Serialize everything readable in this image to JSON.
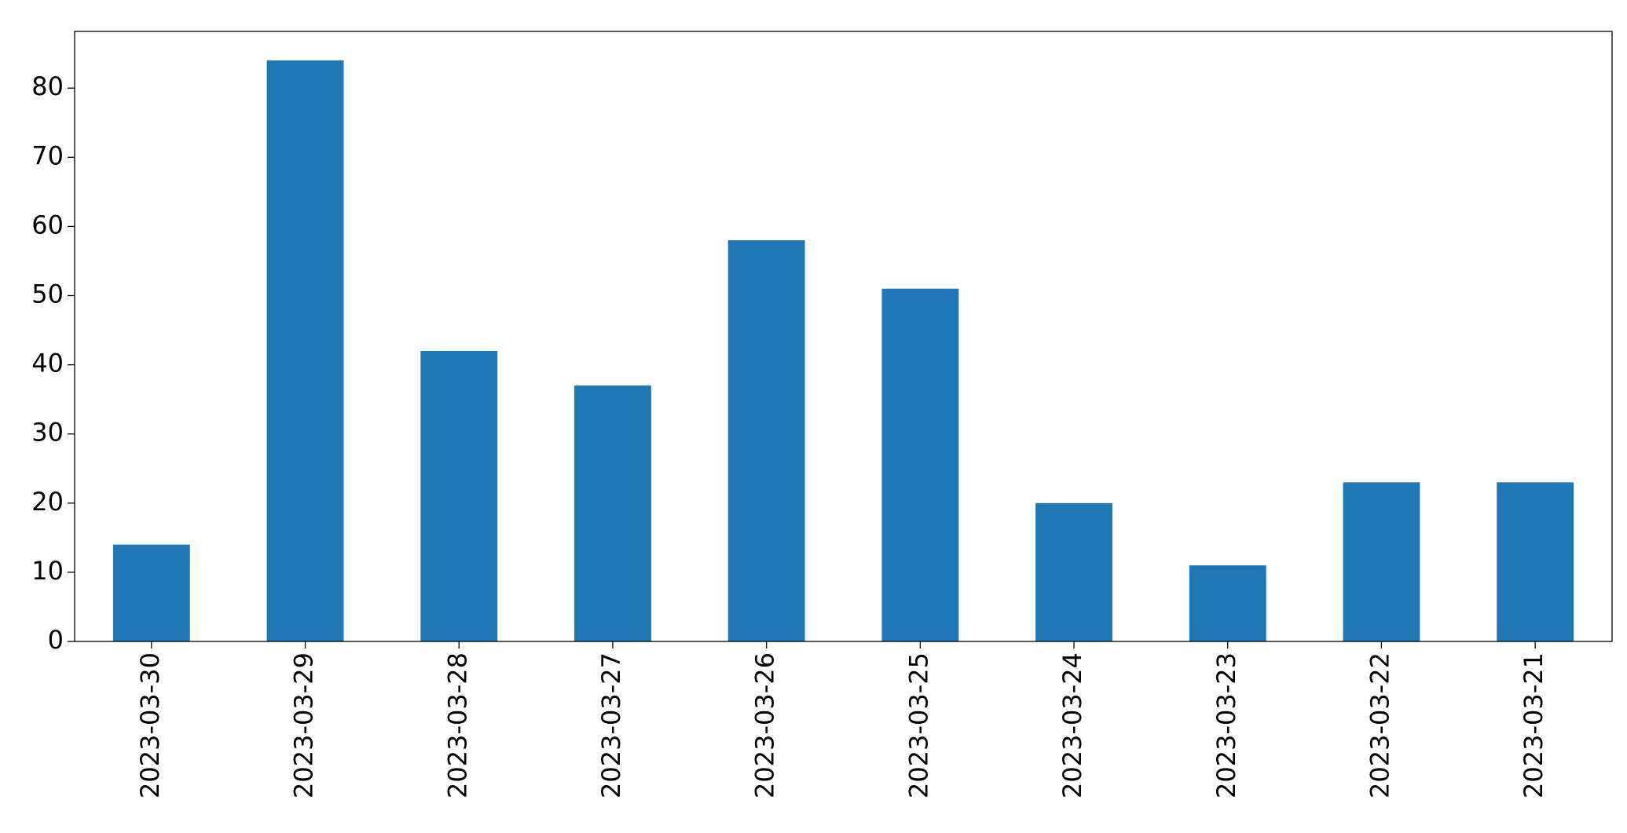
{
  "chart_data": {
    "type": "bar",
    "categories": [
      "2023-03-30",
      "2023-03-29",
      "2023-03-28",
      "2023-03-27",
      "2023-03-26",
      "2023-03-25",
      "2023-03-24",
      "2023-03-23",
      "2023-03-22",
      "2023-03-21"
    ],
    "values": [
      14,
      84,
      42,
      37,
      58,
      51,
      20,
      11,
      23,
      23
    ],
    "color": "#1f77b4",
    "ylim": [
      0,
      88.2
    ],
    "yticks": [
      0,
      10,
      20,
      30,
      40,
      50,
      60,
      70,
      80
    ],
    "grid": false
  }
}
